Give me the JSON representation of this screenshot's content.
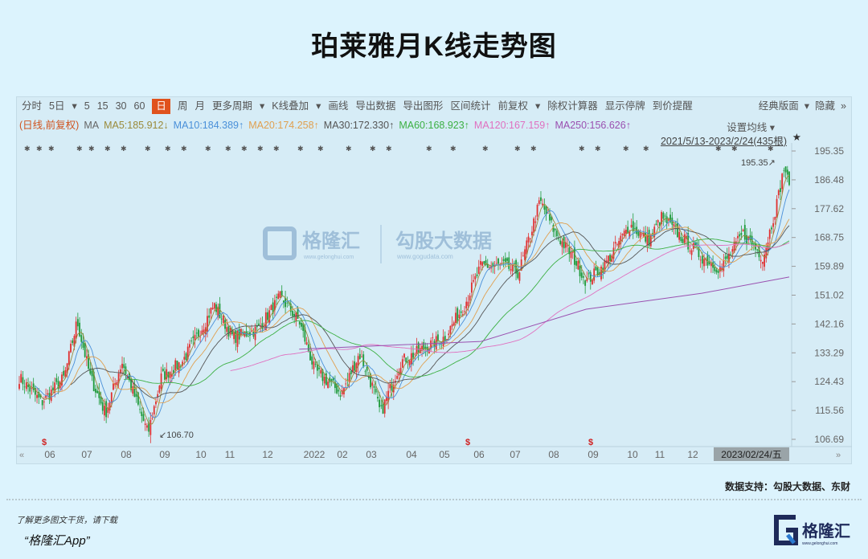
{
  "title": "珀莱雅月K线走势图",
  "toolbar": {
    "items": [
      "分时",
      "5日",
      "▾",
      "5",
      "15",
      "30",
      "60",
      "日",
      "周",
      "月",
      "更多周期",
      "▾",
      "K线叠加",
      "▾",
      "画线",
      "导出数据",
      "导出图形",
      "区间统计",
      "前复权",
      "▾",
      "除权计算器",
      "显示停牌",
      "到价提醒",
      "经典版面",
      "▾",
      "隐藏",
      "»"
    ],
    "selected": "日"
  },
  "ma_line": {
    "prefix": "(日线,前复权)",
    "ma": "MA",
    "items": [
      {
        "label": "MA5:185.912↓",
        "color": "#9a8a3a"
      },
      {
        "label": "MA10:184.389↑",
        "color": "#4a90d9"
      },
      {
        "label": "MA20:174.258↑",
        "color": "#e0a050"
      },
      {
        "label": "MA30:172.330↑",
        "color": "#555555"
      },
      {
        "label": "MA60:168.923↑",
        "color": "#3cb043"
      },
      {
        "label": "MA120:167.159↑",
        "color": "#e070c0"
      },
      {
        "label": "MA250:156.626↑",
        "color": "#9a50b0"
      }
    ]
  },
  "set_ma": "设置均线 ▾",
  "range": "2021/5/13-2023/2/24(435根)",
  "watermark": {
    "left": "格隆汇",
    "left_sub": "www.gelonghui.com",
    "right": "勾股大数据",
    "right_sub": "www.gogudata.com"
  },
  "chart_data": {
    "type": "candlestick",
    "title": "珀莱雅月K线走势图",
    "period": "2021/5/13-2023/2/24",
    "bars": 435,
    "colors": {
      "up": "#e03030",
      "down": "#1e9a3a"
    },
    "y_ticks": [
      "195.35",
      "186.48",
      "177.62",
      "168.75",
      "159.89",
      "151.02",
      "142.16",
      "133.29",
      "124.43",
      "115.56",
      "106.69"
    ],
    "ylim": [
      106.69,
      195.35
    ],
    "x_ticks": [
      "06",
      "07",
      "08",
      "09",
      "10",
      "11",
      "12",
      "2022",
      "02",
      "03",
      "04",
      "05",
      "06",
      "07",
      "08",
      "09",
      "10",
      "11",
      "12",
      "2023/02/24/五"
    ],
    "annotations": {
      "high": "195.35",
      "low": "106.70"
    },
    "close_path": [
      [
        "2021-05-13",
        125.7
      ],
      [
        "2021-06-01",
        118.0
      ],
      [
        "2021-06-20",
        125.7
      ],
      [
        "2021-07-01",
        143.0
      ],
      [
        "2021-07-12",
        126.0
      ],
      [
        "2021-07-25",
        114.6
      ],
      [
        "2021-08-08",
        130.6
      ],
      [
        "2021-08-30",
        108.4
      ],
      [
        "2021-09-10",
        125.7
      ],
      [
        "2021-09-28",
        130.6
      ],
      [
        "2021-10-10",
        138.0
      ],
      [
        "2021-10-25",
        148.0
      ],
      [
        "2021-11-10",
        138.0
      ],
      [
        "2021-12-01",
        140.5
      ],
      [
        "2021-12-20",
        150.4
      ],
      [
        "2022-01-05",
        143.0
      ],
      [
        "2022-01-18",
        128.0
      ],
      [
        "2022-02-10",
        120.8
      ],
      [
        "2022-02-25",
        133.0
      ],
      [
        "2022-03-08",
        123.0
      ],
      [
        "2022-03-15",
        114.6
      ],
      [
        "2022-04-01",
        130.6
      ],
      [
        "2022-04-25",
        135.6
      ],
      [
        "2022-05-08",
        138.0
      ],
      [
        "2022-05-25",
        148.0
      ],
      [
        "2022-06-08",
        160.0
      ],
      [
        "2022-06-28",
        160.0
      ],
      [
        "2022-07-10",
        157.8
      ],
      [
        "2022-07-28",
        180.0
      ],
      [
        "2022-08-10",
        170.0
      ],
      [
        "2022-08-25",
        162.7
      ],
      [
        "2022-09-05",
        155.3
      ],
      [
        "2022-09-20",
        160.0
      ],
      [
        "2022-10-12",
        172.6
      ],
      [
        "2022-10-28",
        167.7
      ],
      [
        "2022-11-08",
        175.0
      ],
      [
        "2022-11-28",
        167.7
      ],
      [
        "2022-12-12",
        162.7
      ],
      [
        "2022-12-28",
        159.0
      ],
      [
        "2023-01-16",
        170.0
      ],
      [
        "2023-02-02",
        162.7
      ],
      [
        "2023-02-14",
        180.0
      ],
      [
        "2023-02-20",
        191.0
      ],
      [
        "2023-02-24",
        183.7
      ]
    ],
    "ma250_path": [
      [
        "2022-01-05",
        134.4
      ],
      [
        "2022-06-08",
        136.8
      ],
      [
        "2022-09-05",
        146.7
      ],
      [
        "2022-12-12",
        151.6
      ],
      [
        "2023-02-24",
        156.6
      ]
    ]
  },
  "footer": {
    "source": "数据支持：勾股大数据、东财",
    "promo_line1": "了解更多图文干货，请下载",
    "promo_line2": "“格隆汇App”",
    "logo": "格隆汇",
    "logo_sub": "www.gelonghui.com"
  }
}
